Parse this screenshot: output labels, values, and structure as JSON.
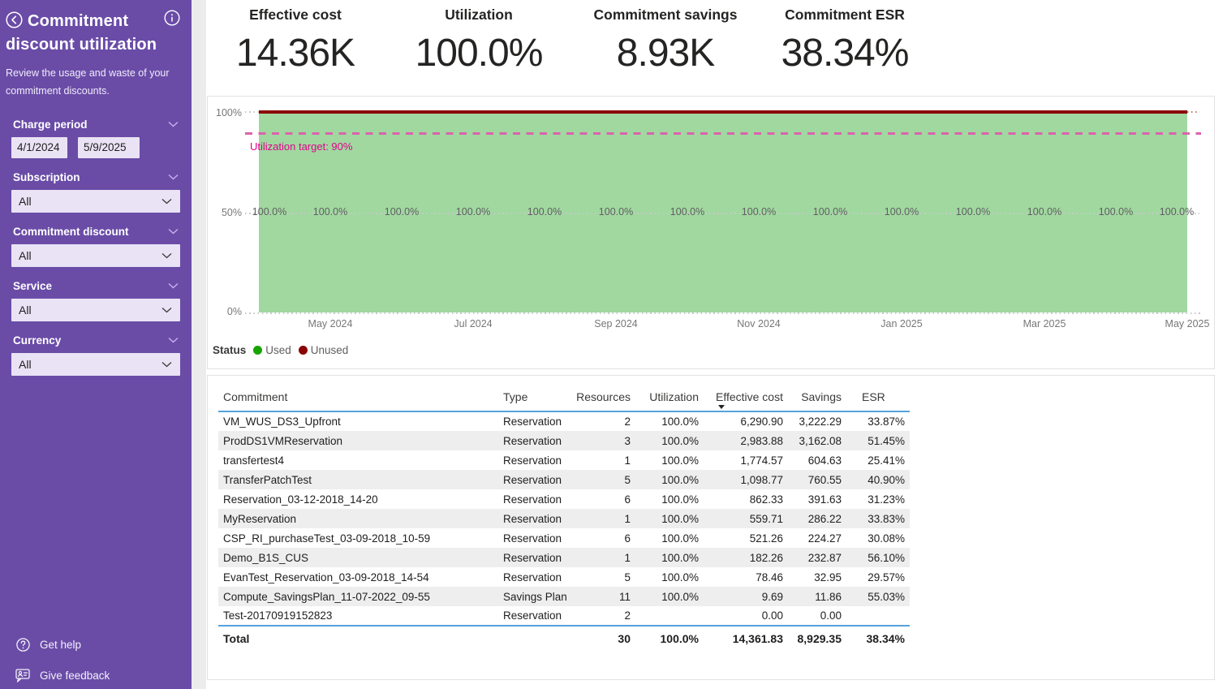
{
  "colors": {
    "sidebar_purple": "#6A4CA7",
    "input_lavender": "#E9E3F5",
    "area_green": "#A0D8A0",
    "used_green": "#18A303",
    "unused_red": "#8B0404",
    "target_pink": "#DD62AE",
    "target_text_magenta": "#E3008C",
    "table_rule_blue": "#55A3DC"
  },
  "sidebar": {
    "title": "Commitment discount utilization",
    "subtitle": "Review the usage and waste of your commitment discounts.",
    "filters": [
      {
        "label": "Charge period",
        "type": "dates",
        "from": "4/1/2024",
        "to": "5/9/2025"
      },
      {
        "label": "Subscription",
        "type": "dropdown",
        "value": "All"
      },
      {
        "label": "Commitment discount",
        "type": "dropdown",
        "value": "All"
      },
      {
        "label": "Service",
        "type": "dropdown",
        "value": "All"
      },
      {
        "label": "Currency",
        "type": "dropdown",
        "value": "All"
      }
    ],
    "footer": [
      {
        "label": "Get help"
      },
      {
        "label": "Give feedback"
      }
    ]
  },
  "kpis": [
    {
      "label": "Effective cost",
      "value": "14.36K"
    },
    {
      "label": "Utilization",
      "value": "100.0%"
    },
    {
      "label": "Commitment savings",
      "value": "8.93K"
    },
    {
      "label": "Commitment ESR",
      "value": "38.34%"
    }
  ],
  "chart_data": {
    "type": "area",
    "x": [
      "Apr 2024",
      "May 2024",
      "Jun 2024",
      "Jul 2024",
      "Aug 2024",
      "Sep 2024",
      "Oct 2024",
      "Nov 2024",
      "Dec 2024",
      "Jan 2025",
      "Feb 2025",
      "Mar 2025",
      "Apr 2025",
      "May 2025"
    ],
    "series": [
      {
        "name": "Used",
        "color": "#18A303",
        "values": [
          100,
          100,
          100,
          100,
          100,
          100,
          100,
          100,
          100,
          100,
          100,
          100,
          100,
          100
        ]
      },
      {
        "name": "Unused",
        "color": "#8B0404",
        "values": [
          0,
          0,
          0,
          0,
          0,
          0,
          0,
          0,
          0,
          0,
          0,
          0,
          0,
          0
        ]
      }
    ],
    "data_labels": [
      "100.0%",
      "100.0%",
      "100.0%",
      "100.0%",
      "100.0%",
      "100.0%",
      "100.0%",
      "100.0%",
      "100.0%",
      "100.0%",
      "100.0%",
      "100.0%",
      "100.0%",
      "100.0%"
    ],
    "y_ticks": [
      "100%",
      "50%",
      "0%"
    ],
    "x_ticks": [
      "May 2024",
      "Jul 2024",
      "Sep 2024",
      "Nov 2024",
      "Jan 2025",
      "Mar 2025",
      "May 2025"
    ],
    "x_tick_month_index": [
      1,
      3,
      5,
      7,
      9,
      11,
      13
    ],
    "ylim": [
      0,
      100
    ],
    "grid": "dotted-horizontal",
    "target": {
      "label": "Utilization target: 90%",
      "value": 90
    },
    "legend_position": "bottom-left"
  },
  "legend": {
    "title": "Status",
    "items": [
      {
        "label": "Used",
        "color": "#18A303"
      },
      {
        "label": "Unused",
        "color": "#8B0404"
      }
    ]
  },
  "table": {
    "columns": [
      {
        "label": "Commitment",
        "align": "left"
      },
      {
        "label": "Type",
        "align": "left"
      },
      {
        "label": "Resources",
        "align": "right"
      },
      {
        "label": "Utilization",
        "align": "right"
      },
      {
        "label": "Effective cost",
        "align": "right",
        "sorted": "desc"
      },
      {
        "label": "Savings",
        "align": "right"
      },
      {
        "label": "ESR",
        "align": "right",
        "header_align": "left"
      }
    ],
    "rows": [
      [
        "VM_WUS_DS3_Upfront",
        "Reservation",
        "2",
        "100.0%",
        "6,290.90",
        "3,222.29",
        "33.87%"
      ],
      [
        "ProdDS1VMReservation",
        "Reservation",
        "3",
        "100.0%",
        "2,983.88",
        "3,162.08",
        "51.45%"
      ],
      [
        "transfertest4",
        "Reservation",
        "1",
        "100.0%",
        "1,774.57",
        "604.63",
        "25.41%"
      ],
      [
        "TransferPatchTest",
        "Reservation",
        "5",
        "100.0%",
        "1,098.77",
        "760.55",
        "40.90%"
      ],
      [
        "Reservation_03-12-2018_14-20",
        "Reservation",
        "6",
        "100.0%",
        "862.33",
        "391.63",
        "31.23%"
      ],
      [
        "MyReservation",
        "Reservation",
        "1",
        "100.0%",
        "559.71",
        "286.22",
        "33.83%"
      ],
      [
        "CSP_RI_purchaseTest_03-09-2018_10-59",
        "Reservation",
        "6",
        "100.0%",
        "521.26",
        "224.27",
        "30.08%"
      ],
      [
        "Demo_B1S_CUS",
        "Reservation",
        "1",
        "100.0%",
        "182.26",
        "232.87",
        "56.10%"
      ],
      [
        "EvanTest_Reservation_03-09-2018_14-54",
        "Reservation",
        "5",
        "100.0%",
        "78.46",
        "32.95",
        "29.57%"
      ],
      [
        "Compute_SavingsPlan_11-07-2022_09-55",
        "Savings Plan",
        "11",
        "100.0%",
        "9.69",
        "11.86",
        "55.03%"
      ],
      [
        "Test-20170919152823",
        "Reservation",
        "2",
        "",
        "0.00",
        "0.00",
        ""
      ]
    ],
    "total": [
      "Total",
      "",
      "30",
      "100.0%",
      "14,361.83",
      "8,929.35",
      "38.34%"
    ]
  }
}
